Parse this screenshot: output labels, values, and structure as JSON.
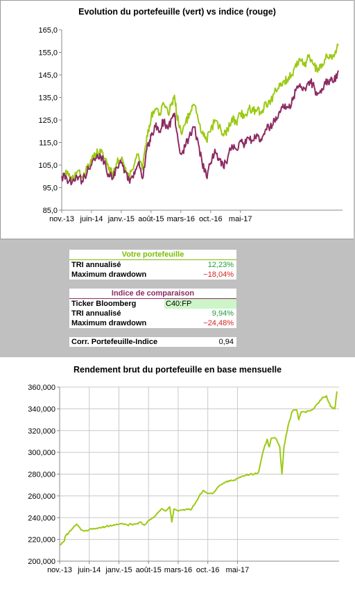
{
  "chart1": {
    "title": "Evolution du portefeuille (vert) vs indice (rouge)",
    "colors": {
      "portfolio": "#9cc914",
      "index": "#8c2b63"
    }
  },
  "chart2": {
    "title": "Rendement brut du portefeuille en base mensuelle",
    "color": "#9cc914"
  },
  "stats": {
    "portfolio_header": "Votre portefeuille",
    "portfolio_tri_label": "TRI annualisé",
    "portfolio_tri_value": "12,23%",
    "portfolio_mdd_label": "Maximum drawdown",
    "portfolio_mdd_value": "−18,04%",
    "index_header": "Indice de comparaison",
    "ticker_label": "Ticker Bloomberg",
    "ticker_value": "C40:FP",
    "index_tri_label": "TRI annualisé",
    "index_tri_value": "9,94%",
    "index_mdd_label": "Maximum drawdown",
    "index_mdd_value": "−24,48%",
    "corr_label": "Corr. Portefeuille-Indice",
    "corr_value": "0,94"
  },
  "chart_data": [
    {
      "type": "line",
      "title": "Evolution du portefeuille (vert) vs indice (rouge)",
      "xlabel": "",
      "ylabel": "",
      "x_ticks": [
        "nov.-13",
        "juin-14",
        "janv.-15",
        "août-15",
        "mars-16",
        "oct.-16",
        "mai-17"
      ],
      "x": [
        0,
        1.2,
        2.4,
        3.6,
        4.8,
        6,
        7,
        8,
        9,
        10,
        11,
        12,
        13,
        14,
        15,
        16,
        17,
        18,
        19,
        20,
        20.5,
        21,
        22,
        23,
        24,
        25,
        26,
        26.5,
        27,
        28,
        29,
        30,
        31,
        32,
        33,
        34,
        35,
        36,
        37,
        38,
        39,
        40,
        41,
        42,
        43,
        44,
        45,
        46,
        47,
        48,
        49,
        50,
        51,
        52,
        53,
        54,
        55,
        56,
        57,
        58,
        59,
        60,
        61,
        62,
        63,
        64,
        65
      ],
      "xlim": [
        0,
        66
      ],
      "ylim": [
        85,
        165
      ],
      "y_ticks": [
        "85,0",
        "95,0",
        "105,0",
        "115,0",
        "125,0",
        "135,0",
        "145,0",
        "155,0",
        "165,0"
      ],
      "grid": false,
      "series": [
        {
          "values": [
            100,
            101,
            98,
            102,
            100,
            104,
            107,
            110,
            112,
            108,
            103,
            101,
            106,
            108,
            104,
            100,
            105,
            110,
            103,
            118,
            120,
            126,
            130,
            128,
            132,
            128,
            133,
            136,
            128,
            120,
            123,
            128,
            132,
            126,
            119,
            116,
            120,
            125,
            122,
            118,
            121,
            126,
            124,
            128,
            127,
            130,
            129,
            130,
            128,
            133,
            132,
            137,
            139,
            142,
            143,
            145,
            150,
            152,
            149,
            153,
            150,
            147,
            148,
            152,
            154,
            153,
            158
          ]
        },
        {
          "values": [
            100,
            99,
            97,
            100,
            98,
            102,
            105,
            108,
            110,
            106,
            101,
            99,
            104,
            106,
            102,
            97,
            102,
            106,
            99,
            112,
            114,
            118,
            122,
            120,
            125,
            121,
            126,
            128,
            120,
            110,
            113,
            118,
            122,
            116,
            106,
            100,
            106,
            112,
            108,
            104,
            108,
            114,
            112,
            116,
            114,
            117,
            116,
            118,
            116,
            121,
            122,
            125,
            128,
            132,
            131,
            132,
            138,
            141,
            139,
            142,
            141,
            136,
            137,
            141,
            143,
            142,
            147
          ]
        }
      ]
    },
    {
      "type": "line",
      "title": "Rendement brut du portefeuille en base mensuelle",
      "xlabel": "",
      "ylabel": "",
      "x_ticks": [
        "nov.-13",
        "juin-14",
        "janv.-15",
        "août-15",
        "mars-16",
        "oct.-16",
        "mai-17"
      ],
      "x": [
        0,
        1,
        1.5,
        2,
        3,
        4,
        5,
        6,
        7,
        8,
        9,
        10,
        11,
        12,
        13,
        14,
        15,
        16,
        17,
        18,
        19,
        20,
        21,
        22,
        23,
        24,
        25,
        26,
        26.5,
        27,
        28,
        29,
        30,
        31,
        32,
        33,
        34,
        35,
        36,
        37,
        38,
        39,
        40,
        41,
        42,
        43,
        44,
        45,
        46,
        47,
        48,
        49,
        49.5,
        50,
        51,
        52,
        52.5,
        53,
        54,
        55,
        56,
        56.5,
        57,
        58,
        59,
        60,
        61,
        62,
        63,
        64,
        65,
        65.5
      ],
      "xlim": [
        0,
        66
      ],
      "ylim": [
        200000,
        360000
      ],
      "y_ticks": [
        "200,000",
        "220,000",
        "240,000",
        "260,000",
        "280,000",
        "300,000",
        "320,000",
        "340,000",
        "360,000"
      ],
      "grid": true,
      "series": [
        {
          "values": [
            215000,
            218000,
            224000,
            225000,
            230000,
            234000,
            229000,
            228000,
            229000,
            230000,
            230000,
            231000,
            232000,
            233000,
            233000,
            234000,
            234000,
            233000,
            234000,
            234000,
            236000,
            233000,
            237000,
            240000,
            244000,
            248000,
            246000,
            250000,
            236000,
            248000,
            246000,
            247000,
            248000,
            247000,
            253000,
            260000,
            265000,
            262000,
            262000,
            266000,
            270000,
            272000,
            274000,
            274000,
            276000,
            278000,
            279000,
            280000,
            280000,
            282000,
            300000,
            312000,
            305000,
            313000,
            313000,
            305000,
            280000,
            305000,
            325000,
            338000,
            339000,
            330000,
            337000,
            337000,
            338000,
            340000,
            345000,
            350000,
            352000,
            342000,
            340000,
            356000
          ]
        }
      ]
    }
  ]
}
